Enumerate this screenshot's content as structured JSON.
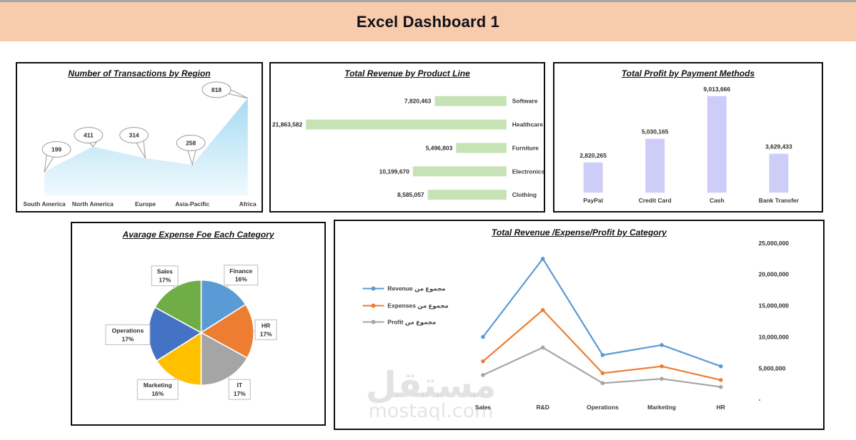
{
  "page": {
    "title": "Excel Dashboard 1",
    "header_bg": "#F8CBAD"
  },
  "watermark": {
    "arabic": "مستقل",
    "domain": "mostaql.com"
  },
  "chart_data": [
    {
      "id": "transactions_by_region",
      "type": "area",
      "title": "Number of Transactions by Region",
      "categories": [
        "South America",
        "North America",
        "Europe",
        "Asia-Pacific",
        "Africa"
      ],
      "values": [
        199,
        411,
        314,
        258,
        818
      ],
      "data_labels": [
        "199",
        "411",
        "314",
        "258",
        "818"
      ],
      "ylim": [
        0,
        818
      ],
      "fill_top": "#A7DBF2",
      "fill_bottom": "#F0FAFE",
      "label_style": "oval-callout",
      "legend_position": "none"
    },
    {
      "id": "revenue_by_product_line",
      "type": "bar",
      "orientation": "horizontal",
      "title": "Total Revenue by Product Line",
      "categories": [
        "Software",
        "Healthcare",
        "Furniture",
        "Electronics",
        "Clothing"
      ],
      "values": [
        7820463,
        21863582,
        5496803,
        10199670,
        8585057
      ],
      "data_labels": [
        "7,820,463",
        "21,863,582",
        "5,496,803",
        "10,199,670",
        "8,585,057"
      ],
      "xlim": [
        0,
        21863582
      ],
      "bar_color": "#C7E3B5",
      "bars_anchored": "right",
      "legend_position": "none"
    },
    {
      "id": "profit_by_payment_methods",
      "type": "bar",
      "orientation": "vertical",
      "title": "Total Profit by Payment Methods",
      "categories": [
        "PayPal",
        "Credit Card",
        "Cash",
        "Bank Transfer"
      ],
      "values": [
        2820265,
        5030165,
        9013666,
        3629433
      ],
      "data_labels": [
        "2,820,265",
        "5,030,165",
        "9,013,666",
        "3,629,433"
      ],
      "ylim": [
        0,
        9013666
      ],
      "bar_color": "#CDCDF8",
      "legend_position": "none"
    },
    {
      "id": "average_expense_pie",
      "type": "pie",
      "title": "Avarage Expense Foe Each Category",
      "slices": [
        {
          "label": "Finance",
          "pct": "16%",
          "value": 16,
          "color": "#5B9BD5"
        },
        {
          "label": "HR",
          "pct": "17%",
          "value": 17,
          "color": "#ED7D31"
        },
        {
          "label": "IT",
          "pct": "17%",
          "value": 17,
          "color": "#A5A5A5"
        },
        {
          "label": "Marketing",
          "pct": "16%",
          "value": 16,
          "color": "#FFC000"
        },
        {
          "label": "Operations",
          "pct": "17%",
          "value": 17,
          "color": "#4472C4"
        },
        {
          "label": "Sales",
          "pct": "17%",
          "value": 17,
          "color": "#70AD47"
        }
      ],
      "legend_position": "data-labels"
    },
    {
      "id": "rev_exp_profit_by_category",
      "type": "line",
      "title": "Total Revenue /Expense/Profit by Category",
      "categories": [
        "Sales",
        "R&D",
        "Operations",
        "Marketing",
        "HR"
      ],
      "series": [
        {
          "name": "Revenue مجموع من",
          "color": "#5B9BD5",
          "values": [
            10000000,
            22500000,
            7100000,
            8700000,
            5300000
          ]
        },
        {
          "name": "Expenses مجموع من",
          "color": "#ED7D31",
          "values": [
            6100000,
            14300000,
            4200000,
            5300000,
            3100000
          ]
        },
        {
          "name": "Profit مجموع من",
          "color": "#A5A5A5",
          "values": [
            3900000,
            8300000,
            2600000,
            3300000,
            2000000
          ]
        }
      ],
      "y_ticks": [
        "25,000,000",
        "20,000,000",
        "15,000,000",
        "10,000,000",
        "5,000,000",
        "-"
      ],
      "ylim": [
        0,
        25000000
      ],
      "axis_side": "right",
      "grid": false,
      "legend_position": "left-middle"
    }
  ]
}
